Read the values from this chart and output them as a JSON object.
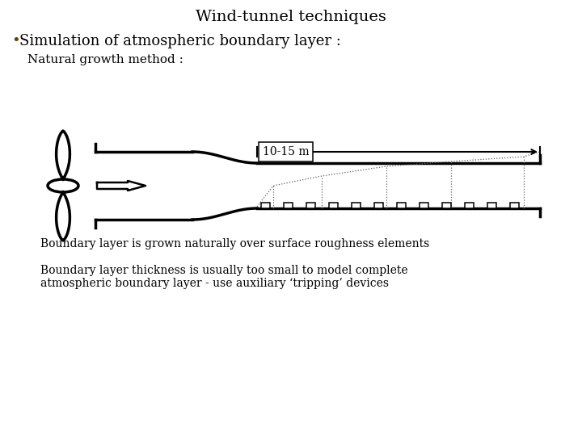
{
  "title": "Wind-tunnel techniques",
  "bullet_text": "Simulation of atmospheric boundary layer :",
  "subheading": "Natural growth method :",
  "label_10_15": "10-15 m",
  "caption1": "Boundary layer is grown naturally over surface roughness elements",
  "caption2": "Boundary layer thickness is usually too small to model complete\natmospheric boundary layer - use auxiliary ‘tripping’ devices",
  "bg_color": "#ffffff",
  "line_color": "#000000",
  "dotted_color": "#606060"
}
